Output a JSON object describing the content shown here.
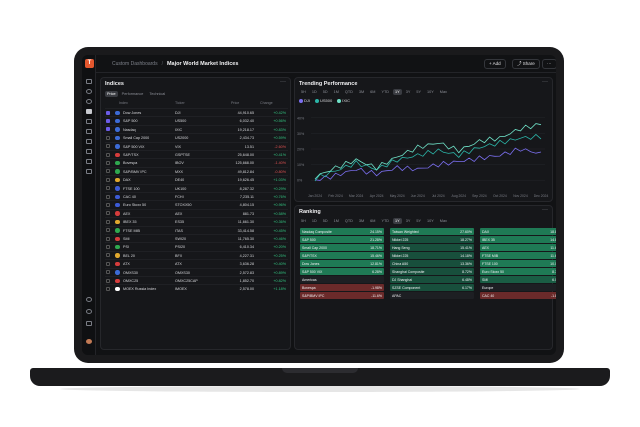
{
  "topbar": {
    "breadcrumb": "Custom Dashboards",
    "title": "Major World Market Indices",
    "add_label": "Add",
    "share_label": "Share",
    "more_label": "···"
  },
  "indices": {
    "title": "Indices",
    "more": "···",
    "tabs": [
      "Price",
      "Performance",
      "Technical"
    ],
    "headers": {
      "index": "Index",
      "ticker": "Ticker",
      "price": "Price",
      "change": "Change"
    },
    "rows": [
      {
        "name": "Dow Jones",
        "ticker": "DJI",
        "price": "44,910.65",
        "change": "+0.42%",
        "flag": "#3c6bd6",
        "checked": true
      },
      {
        "name": "S&P 500",
        "ticker": "US500",
        "price": "6,032.40",
        "change": "+0.56%",
        "flag": "#3c6bd6",
        "checked": true
      },
      {
        "name": "Nasdaq",
        "ticker": "IXIC",
        "price": "19,218.17",
        "change": "+0.83%",
        "flag": "#3c6bd6",
        "checked": true
      },
      {
        "name": "Small Cap 2000",
        "ticker": "US2000",
        "price": "2,434.73",
        "change": "+0.59%",
        "flag": "#3c6bd6",
        "checked": false
      },
      {
        "name": "S&P 500 VIX",
        "ticker": "VIX",
        "price": "13.51",
        "change": "-2.60%",
        "flag": "#3c6bd6",
        "checked": false
      },
      {
        "name": "S&P/TSX",
        "ticker": "GSPTSE",
        "price": "25,648.00",
        "change": "+0.41%",
        "flag": "#d63c3c",
        "checked": false
      },
      {
        "name": "Bovespa",
        "ticker": "IBOV",
        "price": "125,668.00",
        "change": "-1.40%",
        "flag": "#2fa84f",
        "checked": false
      },
      {
        "name": "S&P/BMV IPC",
        "ticker": "MXX",
        "price": "49,812.84",
        "change": "-0.80%",
        "flag": "#2fa84f",
        "checked": false
      },
      {
        "name": "DAX",
        "ticker": "DE40",
        "price": "19,626.45",
        "change": "+1.03%",
        "flag": "#e0a82e",
        "checked": false
      },
      {
        "name": "FTSE 100",
        "ticker": "UK100",
        "price": "8,287.32",
        "change": "+0.29%",
        "flag": "#3c5bd6",
        "checked": false
      },
      {
        "name": "CAC 40",
        "ticker": "FCHI",
        "price": "7,235.11",
        "change": "+0.76%",
        "flag": "#3c5bd6",
        "checked": false
      },
      {
        "name": "Euro Stoxx 50",
        "ticker": "STOXX50",
        "price": "4,804.15",
        "change": "+0.96%",
        "flag": "#3c5bd6",
        "checked": false
      },
      {
        "name": "AEX",
        "ticker": "AEX",
        "price": "881.73",
        "change": "+0.58%",
        "flag": "#d63c3c",
        "checked": false
      },
      {
        "name": "IBEX 35",
        "ticker": "ES35",
        "price": "11,661.30",
        "change": "+0.36%",
        "flag": "#e0a82e",
        "checked": false
      },
      {
        "name": "FTSE MIB",
        "ticker": "ITAS",
        "price": "33,414.58",
        "change": "+0.45%",
        "flag": "#2fa84f",
        "checked": false
      },
      {
        "name": "SMI",
        "ticker": "SWI20",
        "price": "11,765.30",
        "change": "+0.46%",
        "flag": "#d63c3c",
        "checked": false
      },
      {
        "name": "PSI",
        "ticker": "PSI20",
        "price": "6,410.34",
        "change": "+0.20%",
        "flag": "#2fa84f",
        "checked": false
      },
      {
        "name": "BEL 20",
        "ticker": "BFX",
        "price": "4,227.31",
        "change": "+0.25%",
        "flag": "#e0a82e",
        "checked": false
      },
      {
        "name": "ATX",
        "ticker": "ATX",
        "price": "3,636.28",
        "change": "+0.40%",
        "flag": "#d63c3c",
        "checked": false
      },
      {
        "name": "OMXS30",
        "ticker": "OMXS30",
        "price": "2,572.83",
        "change": "+0.89%",
        "flag": "#3c6bd6",
        "checked": false
      },
      {
        "name": "OMXC25",
        "ticker": "OMXC25CAP",
        "price": "1,852.70",
        "change": "+0.82%",
        "flag": "#d63c3c",
        "checked": false
      },
      {
        "name": "MOEX Russia Index",
        "ticker": "IMOEX",
        "price": "2,578.00",
        "change": "+1.18%",
        "flag": "#ffffff",
        "checked": false
      }
    ]
  },
  "trending": {
    "title": "Trending Performance",
    "more": "···",
    "ranges": [
      "5H",
      "1D",
      "5D",
      "1M",
      "QTD",
      "3M",
      "6M",
      "YTD",
      "1Y",
      "3Y",
      "5Y",
      "10Y",
      "Max"
    ],
    "active_range": "1Y",
    "legend": [
      "DJI",
      "US500",
      "IXIC"
    ],
    "colors": {
      "DJI": "#7b6ff0",
      "US500": "#2bb5a8",
      "IXIC": "#6fe2c8"
    }
  },
  "chart_data": {
    "type": "line",
    "x": [
      "Jan 2024",
      "Feb 2024",
      "Mar 2024",
      "Apr 2024",
      "May 2024",
      "Jun 2024",
      "Jul 2024",
      "Aug 2024",
      "Sep 2024",
      "Oct 2024",
      "Nov 2024",
      "Dec 2024"
    ],
    "ylim": [
      -5,
      45
    ],
    "yticks": [
      "40%",
      "30%",
      "20%",
      "10%",
      "0%"
    ],
    "series": [
      {
        "name": "DJI",
        "values": [
          0,
          3,
          7,
          4,
          8,
          7,
          10,
          12,
          14,
          16,
          20,
          17
        ]
      },
      {
        "name": "US500",
        "values": [
          1,
          6,
          11,
          7,
          13,
          16,
          19,
          16,
          21,
          24,
          27,
          28
        ]
      },
      {
        "name": "IXIC",
        "values": [
          2,
          8,
          13,
          8,
          15,
          21,
          24,
          19,
          25,
          27,
          33,
          36
        ]
      }
    ]
  },
  "ranking": {
    "title": "Ranking",
    "more": "···",
    "ranges": [
      "5H",
      "1D",
      "5D",
      "1M",
      "QTD",
      "3M",
      "6M",
      "YTD",
      "1Y",
      "3Y",
      "5Y",
      "10Y",
      "Max"
    ],
    "active_range": "1Y",
    "columns": [
      [
        {
          "name": "Nasdaq Composite",
          "value": "24.15%",
          "pos": true
        },
        {
          "name": "S&P 500",
          "value": "21.28%",
          "pos": true
        },
        {
          "name": "Small Cap 2000",
          "value": "18.71%",
          "pos": true
        },
        {
          "name": "S&P/TSX",
          "value": "15.46%",
          "pos": true
        },
        {
          "name": "Dow Jones",
          "value": "12.81%",
          "pos": true
        },
        {
          "name": "S&P 500 VIX",
          "value": "6.28%",
          "pos": true
        },
        {
          "name": "Americas",
          "value": "",
          "pos": null
        },
        {
          "name": "Bovespa",
          "value": "-1.98%",
          "pos": false
        },
        {
          "name": "S&P/BMV IPC",
          "value": "-11.6%",
          "pos": false
        }
      ],
      [
        {
          "name": "Taiwan Weighted",
          "value": "27.60%",
          "pos": true
        },
        {
          "name": "Nikkei 225",
          "value": "18.27%",
          "pos": true
        },
        {
          "name": "Hang Seng",
          "value": "15.41%",
          "pos": true
        },
        {
          "name": "Nikkei 225",
          "value": "14.18%",
          "pos": true
        },
        {
          "name": "China A50",
          "value": "13.36%",
          "pos": true
        },
        {
          "name": "Shanghai Composite",
          "value": "8.72%",
          "pos": true
        },
        {
          "name": "DJ Shanghai",
          "value": "6.48%",
          "pos": true
        },
        {
          "name": "SZSE Component",
          "value": "6.17%",
          "pos": true
        },
        {
          "name": "APAC",
          "value": "",
          "pos": null
        }
      ],
      [
        {
          "name": "DAX",
          "value": "18.85%",
          "pos": true
        },
        {
          "name": "IBEX 35",
          "value": "14.85%",
          "pos": true
        },
        {
          "name": "AEX",
          "value": "11.65%",
          "pos": true
        },
        {
          "name": "FTSE MIB",
          "value": "11.65%",
          "pos": true
        },
        {
          "name": "FTSE 100",
          "value": "10.07%",
          "pos": true
        },
        {
          "name": "Euro Stoxx 50",
          "value": "8.73%",
          "pos": true
        },
        {
          "name": "SMI",
          "value": "6.05%",
          "pos": true
        },
        {
          "name": "Europe",
          "value": "",
          "pos": null
        },
        {
          "name": "CAC 40",
          "value": "-1.81%",
          "pos": false
        }
      ]
    ]
  }
}
